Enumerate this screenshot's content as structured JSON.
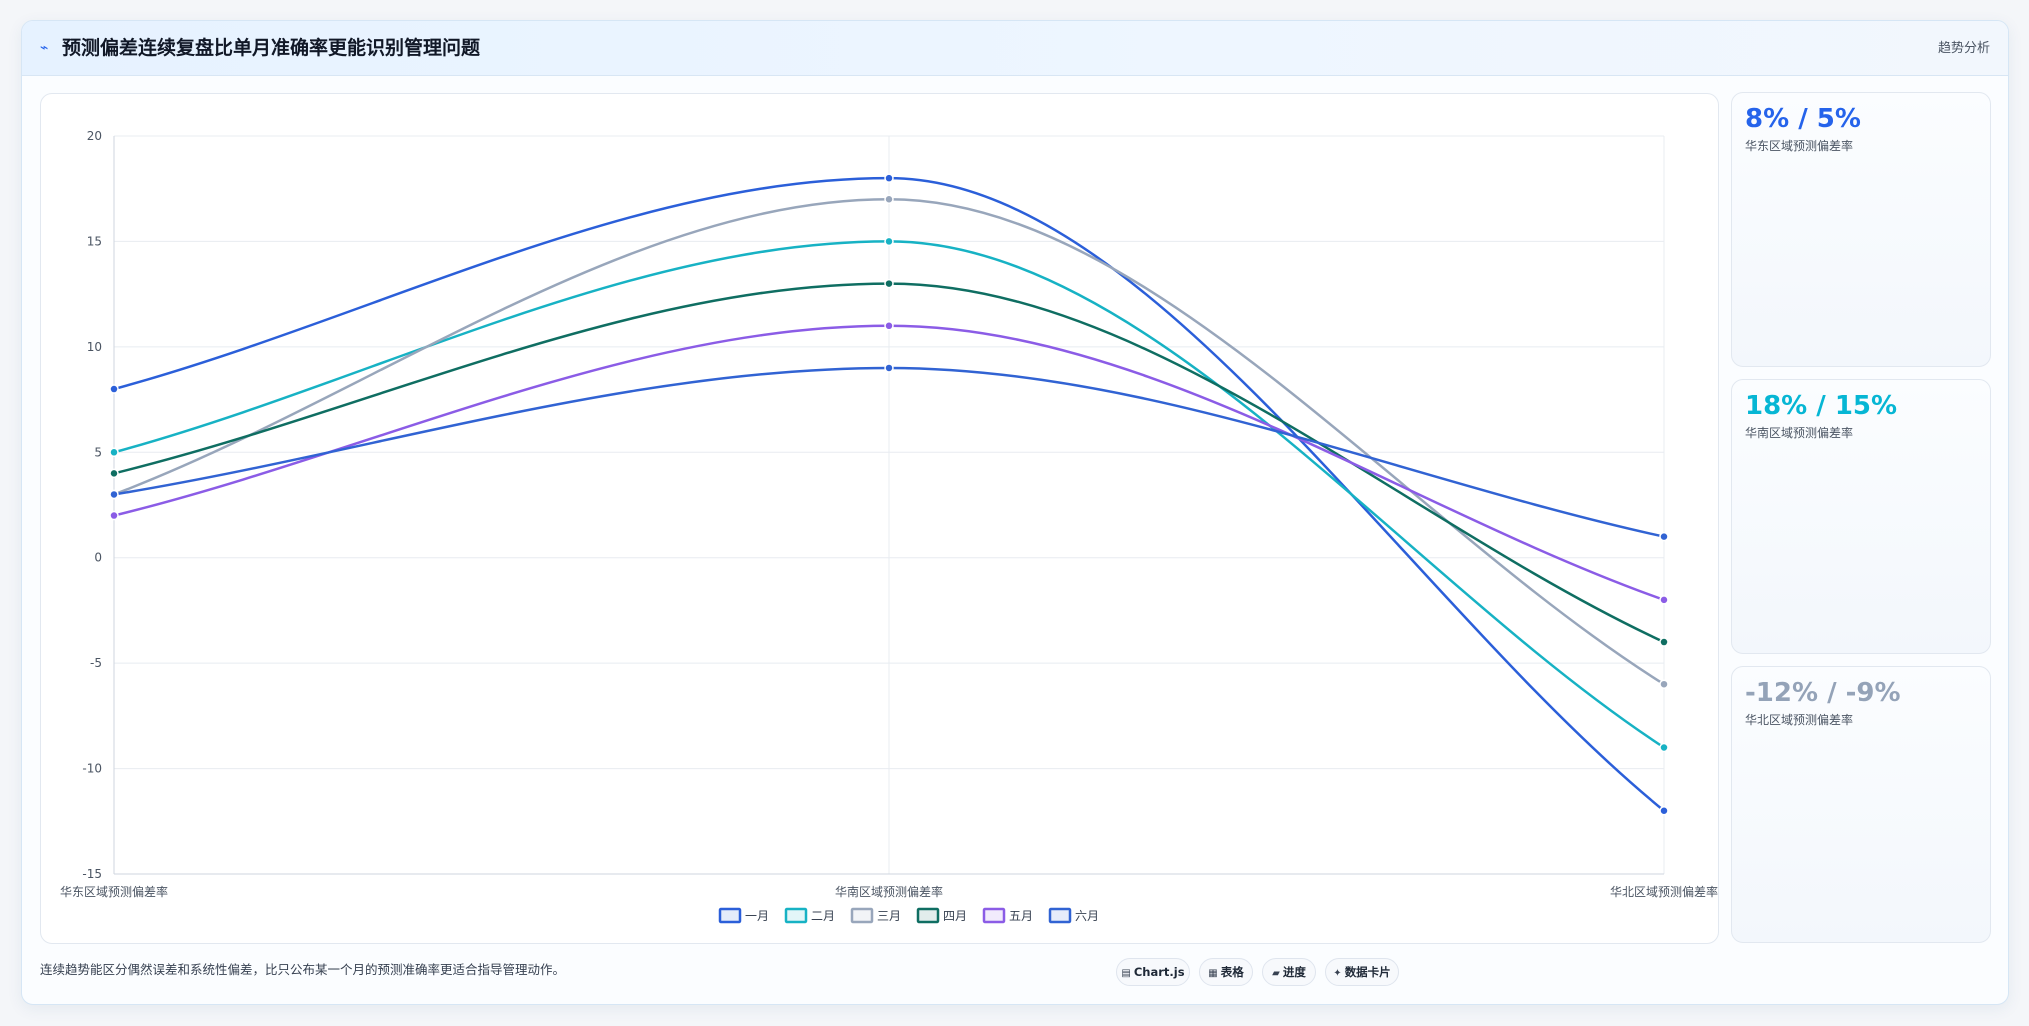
{
  "header": {
    "icon": "trend-icon",
    "title": "预测偏差连续复盘比单月准确率更能识别管理问题",
    "tag": "趋势分析"
  },
  "kpis": [
    {
      "value": "8% / 5%",
      "label": "华东区域预测偏差率",
      "color": "#2563eb"
    },
    {
      "value": "18% / 15%",
      "label": "华南区域预测偏差率",
      "color": "#06b6d4"
    },
    {
      "value": "-12% / -9%",
      "label": "华北区域预测偏差率",
      "color": "#94a3b8"
    }
  ],
  "footer": {
    "note": "连续趋势能区分偶然误差和系统性偏差，比只公布某一个月的预测准确率更适合指导管理动作。",
    "pills": [
      {
        "icon": "chart-icon",
        "glyph": "▤",
        "label": "Chart.js"
      },
      {
        "icon": "table-icon",
        "glyph": "▦",
        "label": "表格"
      },
      {
        "icon": "progress-icon",
        "glyph": "▰",
        "label": "进度"
      },
      {
        "icon": "card-icon",
        "glyph": "✦",
        "label": "数据卡片"
      }
    ]
  },
  "chart_data": {
    "type": "line",
    "categories": [
      "华东区域预测偏差率",
      "华南区域预测偏差率",
      "华北区域预测偏差率"
    ],
    "ylim": [
      -15,
      20
    ],
    "yticks": [
      20,
      15,
      10,
      5,
      0,
      -5,
      -10,
      -15
    ],
    "grid": true,
    "legend_position": "bottom",
    "series": [
      {
        "name": "一月",
        "color": "#2b5fd9",
        "values": [
          8,
          18,
          -12
        ]
      },
      {
        "name": "二月",
        "color": "#17b2c4",
        "values": [
          5,
          15,
          -9
        ]
      },
      {
        "name": "三月",
        "color": "#98a6bb",
        "values": [
          3,
          17,
          -6
        ]
      },
      {
        "name": "四月",
        "color": "#0f6e62",
        "values": [
          4,
          13,
          -4
        ]
      },
      {
        "name": "五月",
        "color": "#8b5ce6",
        "values": [
          2,
          11,
          -2
        ]
      },
      {
        "name": "六月",
        "color": "#3163d3",
        "values": [
          3,
          9,
          1
        ]
      }
    ]
  }
}
